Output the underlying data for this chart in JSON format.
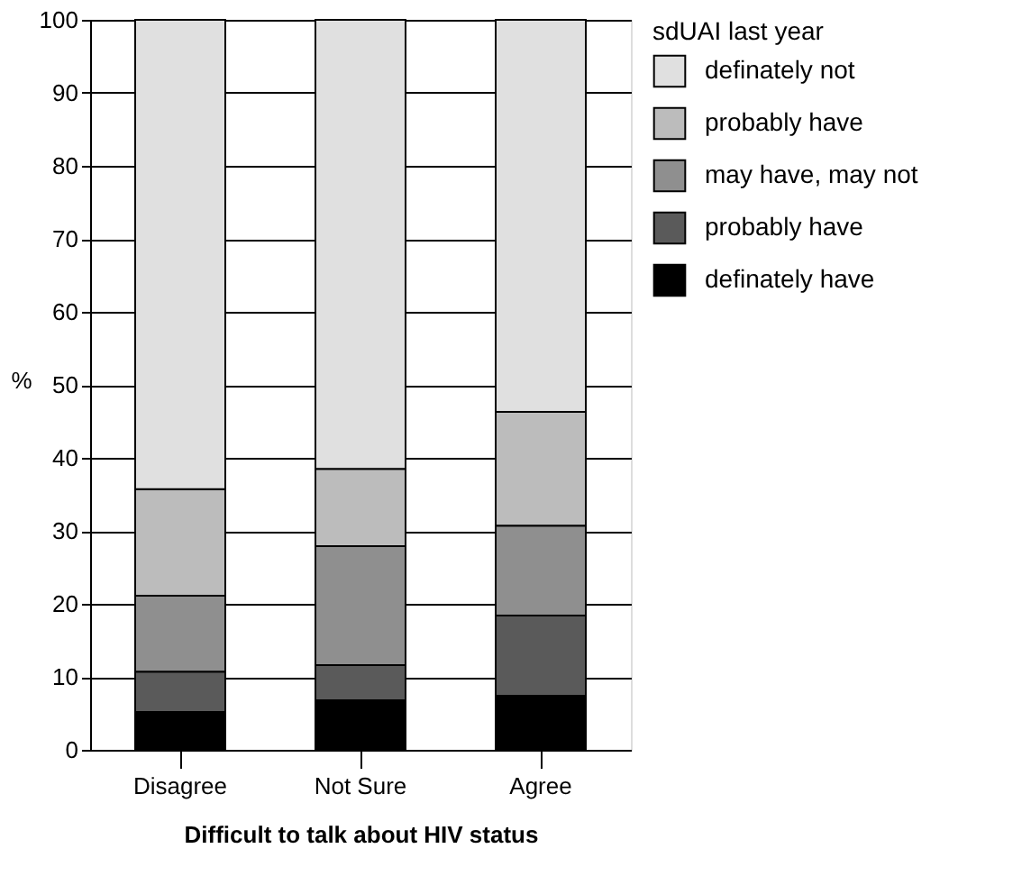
{
  "chart_data": {
    "type": "bar",
    "stacked": true,
    "xlabel": "Difficult to talk about HIV status",
    "ylabel": "%",
    "legend_title": "sdUAI last year",
    "categories": [
      "Disagree",
      "Not Sure",
      "Agree"
    ],
    "series": [
      {
        "name": "definately have",
        "color": "#000000",
        "values": [
          5.2,
          6.8,
          7.4
        ]
      },
      {
        "name": "probably have",
        "color": "#5a5a5a",
        "values": [
          5.5,
          4.8,
          11.0
        ]
      },
      {
        "name": "may have, may not",
        "color": "#8f8f8f",
        "values": [
          10.4,
          16.3,
          12.3
        ]
      },
      {
        "name": "probably have",
        "color": "#bcbcbc",
        "values": [
          14.6,
          10.6,
          15.6
        ]
      },
      {
        "name": "definately not",
        "color": "#e0e0e0",
        "values": [
          64.3,
          61.5,
          53.7
        ]
      }
    ],
    "ylim": [
      0,
      100
    ],
    "yticks": [
      0,
      10,
      20,
      30,
      40,
      50,
      60,
      70,
      80,
      90,
      100
    ],
    "grid": "y",
    "legend": "right"
  }
}
